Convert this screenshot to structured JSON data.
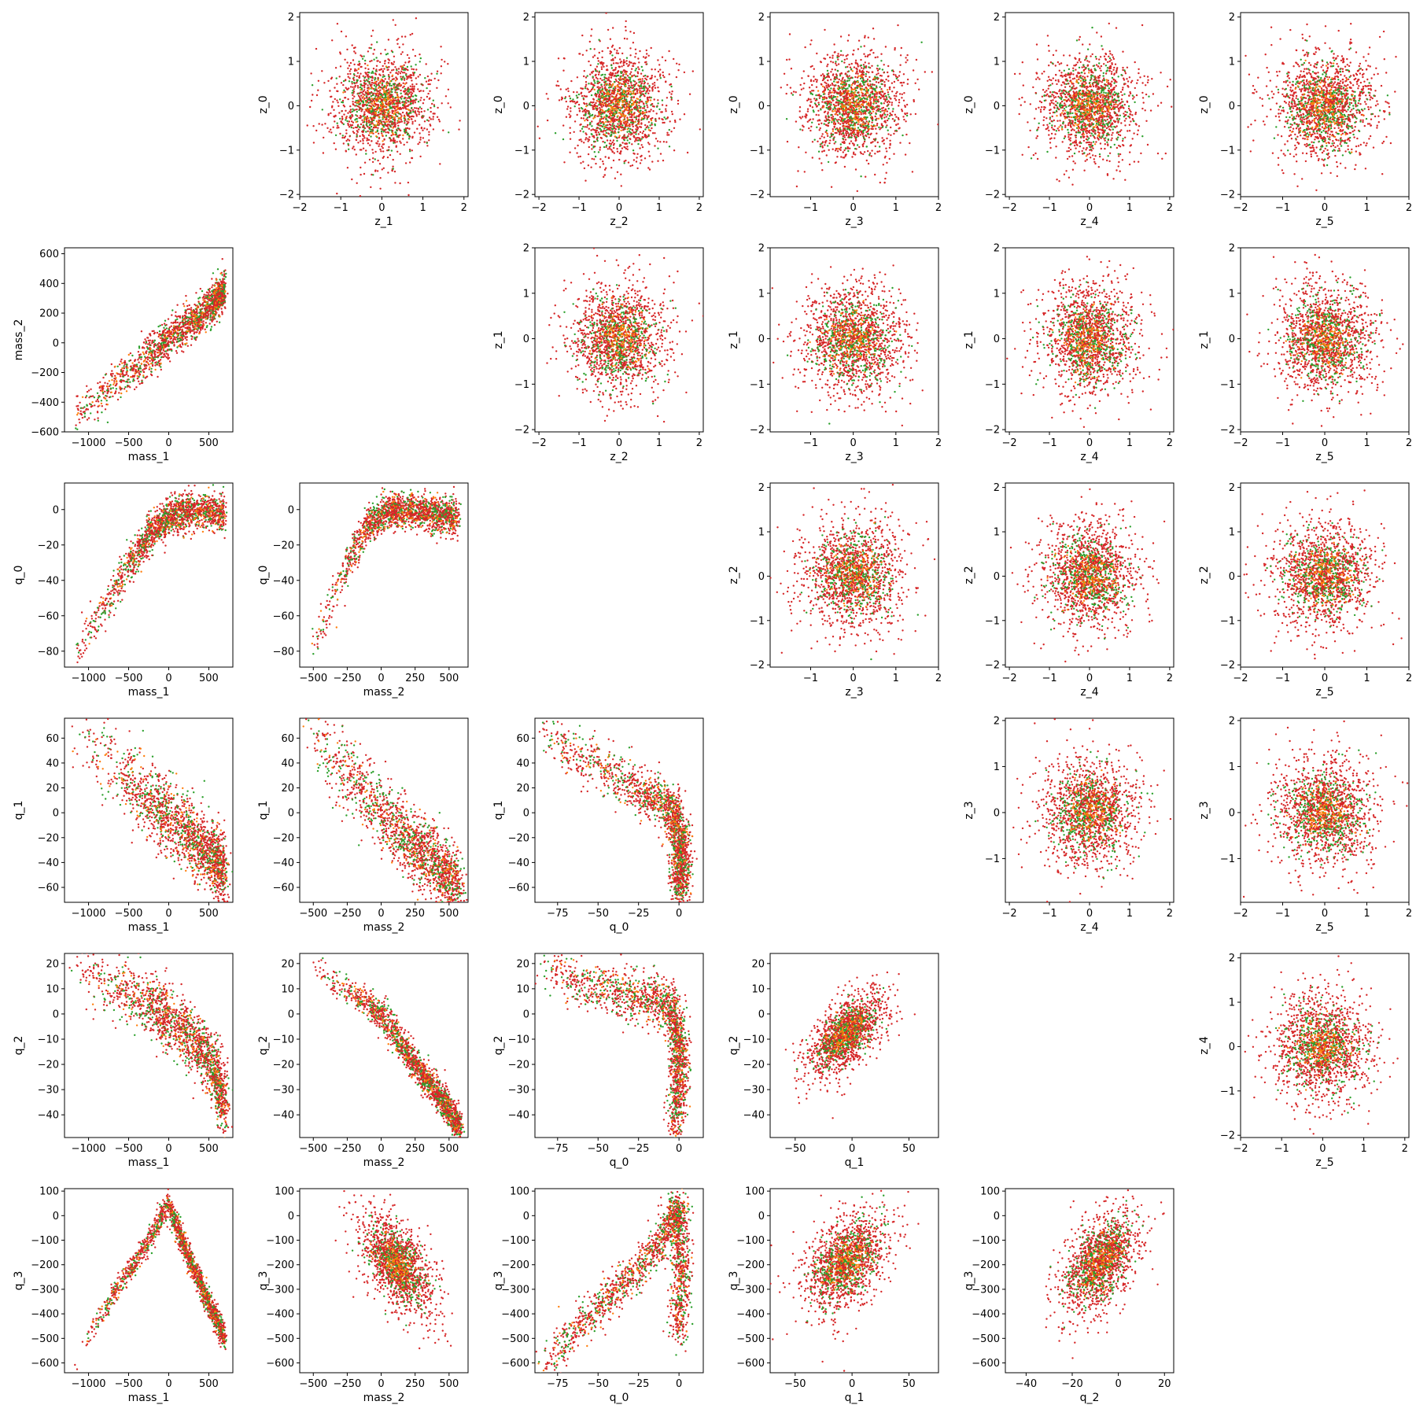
{
  "figure": {
    "kind": "corner pair plot",
    "colors": {
      "red": "#d62728",
      "green": "#2ca02c",
      "orange": "#ff7f0e"
    }
  },
  "chart_data": [
    {
      "type": "scatter",
      "row": 0,
      "col": 1,
      "xlabel": "z_1",
      "ylabel": "z_0",
      "xlim": [
        -2.0,
        2.1
      ],
      "ylim": [
        -2.05,
        2.1
      ],
      "xticks": [
        -2,
        -1,
        0,
        1,
        2
      ],
      "yticks": [
        -2,
        -1,
        0,
        1,
        2
      ],
      "shape": "blob",
      "sx": 0.65,
      "sy": 0.65
    },
    {
      "type": "scatter",
      "row": 0,
      "col": 2,
      "xlabel": "z_2",
      "ylabel": "z_0",
      "xlim": [
        -2.1,
        2.1
      ],
      "ylim": [
        -2.05,
        2.1
      ],
      "xticks": [
        -2,
        -1,
        0,
        1,
        2
      ],
      "yticks": [
        -2,
        -1,
        0,
        1,
        2
      ],
      "shape": "blob",
      "sx": 0.65,
      "sy": 0.65
    },
    {
      "type": "scatter",
      "row": 0,
      "col": 3,
      "xlabel": "z_3",
      "ylabel": "z_0",
      "xlim": [
        -1.95,
        2.0
      ],
      "ylim": [
        -2.05,
        2.1
      ],
      "xticks": [
        -1,
        0,
        1,
        2
      ],
      "yticks": [
        -2,
        -1,
        0,
        1,
        2
      ],
      "shape": "blob",
      "sx": 0.65,
      "sy": 0.65
    },
    {
      "type": "scatter",
      "row": 0,
      "col": 4,
      "xlabel": "z_4",
      "ylabel": "z_0",
      "xlim": [
        -2.1,
        2.1
      ],
      "ylim": [
        -2.05,
        2.1
      ],
      "xticks": [
        -2,
        -1,
        0,
        1,
        2
      ],
      "yticks": [
        -2,
        -1,
        0,
        1,
        2
      ],
      "shape": "blob",
      "sx": 0.65,
      "sy": 0.65
    },
    {
      "type": "scatter",
      "row": 0,
      "col": 5,
      "xlabel": "z_5",
      "ylabel": "z_0",
      "xlim": [
        -2.0,
        2.0
      ],
      "ylim": [
        -2.05,
        2.1
      ],
      "xticks": [
        -2,
        -1,
        0,
        1,
        2
      ],
      "yticks": [
        -2,
        -1,
        0,
        1,
        2
      ],
      "shape": "blob",
      "sx": 0.65,
      "sy": 0.65
    },
    {
      "type": "scatter",
      "row": 1,
      "col": 0,
      "xlabel": "mass_1",
      "ylabel": "mass_2",
      "xlim": [
        -1300,
        800
      ],
      "ylim": [
        -600,
        640
      ],
      "xticks": [
        -1000,
        -500,
        0,
        500
      ],
      "yticks": [
        -600,
        -400,
        -200,
        0,
        200,
        400,
        600
      ],
      "shape": "curve",
      "pts": [
        [
          -1200,
          -520
        ],
        [
          -1000,
          -420
        ],
        [
          -600,
          -250
        ],
        [
          -250,
          -90
        ],
        [
          0,
          20
        ],
        [
          300,
          140
        ],
        [
          550,
          260
        ],
        [
          700,
          360
        ]
      ],
      "spread": [
        15,
        65
      ],
      "skew": 0.55
    },
    {
      "type": "scatter",
      "row": 1,
      "col": 2,
      "xlabel": "z_2",
      "ylabel": "z_1",
      "xlim": [
        -2.1,
        2.1
      ],
      "ylim": [
        -2.05,
        2.0
      ],
      "xticks": [
        -2,
        -1,
        0,
        1,
        2
      ],
      "yticks": [
        -2,
        -1,
        0,
        1,
        2
      ],
      "shape": "blob",
      "sx": 0.65,
      "sy": 0.65
    },
    {
      "type": "scatter",
      "row": 1,
      "col": 3,
      "xlabel": "z_3",
      "ylabel": "z_1",
      "xlim": [
        -1.95,
        2.0
      ],
      "ylim": [
        -2.05,
        2.0
      ],
      "xticks": [
        -1,
        0,
        1,
        2
      ],
      "yticks": [
        -2,
        -1,
        0,
        1,
        2
      ],
      "shape": "blob",
      "sx": 0.65,
      "sy": 0.65
    },
    {
      "type": "scatter",
      "row": 1,
      "col": 4,
      "xlabel": "z_4",
      "ylabel": "z_1",
      "xlim": [
        -2.1,
        2.1
      ],
      "ylim": [
        -2.05,
        2.0
      ],
      "xticks": [
        -2,
        -1,
        0,
        1,
        2
      ],
      "yticks": [
        -2,
        -1,
        0,
        1,
        2
      ],
      "shape": "blob",
      "sx": 0.65,
      "sy": 0.65
    },
    {
      "type": "scatter",
      "row": 1,
      "col": 5,
      "xlabel": "z_5",
      "ylabel": "z_1",
      "xlim": [
        -2.0,
        2.0
      ],
      "ylim": [
        -2.05,
        2.0
      ],
      "xticks": [
        -2,
        -1,
        0,
        1,
        2
      ],
      "yticks": [
        -2,
        -1,
        0,
        1,
        2
      ],
      "shape": "blob",
      "sx": 0.65,
      "sy": 0.65
    },
    {
      "type": "scatter",
      "row": 2,
      "col": 0,
      "xlabel": "mass_1",
      "ylabel": "q_0",
      "xlim": [
        -1300,
        800
      ],
      "ylim": [
        -89,
        15
      ],
      "xticks": [
        -1000,
        -500,
        0,
        500
      ],
      "yticks": [
        -80,
        -60,
        -40,
        -20,
        0
      ],
      "shape": "curve",
      "pts": [
        [
          -1200,
          -83
        ],
        [
          -900,
          -62
        ],
        [
          -500,
          -32
        ],
        [
          -250,
          -15
        ],
        [
          0,
          -4
        ],
        [
          300,
          -1
        ],
        [
          700,
          -2
        ]
      ],
      "spread": [
        20,
        5
      ],
      "skew": 0.55
    },
    {
      "type": "scatter",
      "row": 2,
      "col": 1,
      "xlabel": "mass_2",
      "ylabel": "q_0",
      "xlim": [
        -600,
        640
      ],
      "ylim": [
        -89,
        15
      ],
      "xticks": [
        -500,
        -250,
        0,
        250,
        500
      ],
      "yticks": [
        -80,
        -60,
        -40,
        -20,
        0
      ],
      "shape": "curve",
      "pts": [
        [
          -550,
          -85
        ],
        [
          -420,
          -62
        ],
        [
          -250,
          -30
        ],
        [
          -120,
          -12
        ],
        [
          0,
          -3
        ],
        [
          150,
          0
        ],
        [
          350,
          -2
        ],
        [
          560,
          -5
        ]
      ],
      "spread": [
        20,
        5
      ],
      "skew": 0.45
    },
    {
      "type": "scatter",
      "row": 2,
      "col": 3,
      "xlabel": "z_3",
      "ylabel": "z_2",
      "xlim": [
        -1.95,
        2.0
      ],
      "ylim": [
        -2.05,
        2.1
      ],
      "xticks": [
        -1,
        0,
        1,
        2
      ],
      "yticks": [
        -2,
        -1,
        0,
        1,
        2
      ],
      "shape": "blob",
      "sx": 0.65,
      "sy": 0.65
    },
    {
      "type": "scatter",
      "row": 2,
      "col": 4,
      "xlabel": "z_4",
      "ylabel": "z_2",
      "xlim": [
        -2.1,
        2.1
      ],
      "ylim": [
        -2.05,
        2.1
      ],
      "xticks": [
        -2,
        -1,
        0,
        1,
        2
      ],
      "yticks": [
        -2,
        -1,
        0,
        1,
        2
      ],
      "shape": "blob",
      "sx": 0.65,
      "sy": 0.65
    },
    {
      "type": "scatter",
      "row": 2,
      "col": 5,
      "xlabel": "z_5",
      "ylabel": "z_2",
      "xlim": [
        -2.0,
        2.0
      ],
      "ylim": [
        -2.05,
        2.1
      ],
      "xticks": [
        -2,
        -1,
        0,
        1,
        2
      ],
      "yticks": [
        -2,
        -1,
        0,
        1,
        2
      ],
      "shape": "blob",
      "sx": 0.65,
      "sy": 0.65
    },
    {
      "type": "scatter",
      "row": 3,
      "col": 0,
      "xlabel": "mass_1",
      "ylabel": "q_1",
      "xlim": [
        -1300,
        800
      ],
      "ylim": [
        -72,
        76
      ],
      "xticks": [
        -1000,
        -500,
        0,
        500
      ],
      "yticks": [
        -60,
        -40,
        -20,
        0,
        20,
        40,
        60
      ],
      "shape": "curve",
      "pts": [
        [
          -1200,
          68
        ],
        [
          -900,
          50
        ],
        [
          -500,
          25
        ],
        [
          -200,
          8
        ],
        [
          0,
          -3
        ],
        [
          300,
          -20
        ],
        [
          550,
          -35
        ],
        [
          700,
          -48
        ]
      ],
      "spread": [
        35,
        14
      ],
      "skew": 0.55
    },
    {
      "type": "scatter",
      "row": 3,
      "col": 1,
      "xlabel": "mass_2",
      "ylabel": "q_1",
      "xlim": [
        -600,
        640
      ],
      "ylim": [
        -72,
        76
      ],
      "xticks": [
        -500,
        -250,
        0,
        250,
        500
      ],
      "yticks": [
        -60,
        -40,
        -20,
        0,
        20,
        40,
        60
      ],
      "shape": "curve",
      "pts": [
        [
          -550,
          70
        ],
        [
          -400,
          50
        ],
        [
          -200,
          25
        ],
        [
          0,
          0
        ],
        [
          200,
          -22
        ],
        [
          400,
          -42
        ],
        [
          580,
          -60
        ]
      ],
      "spread": [
        25,
        14
      ],
      "skew": 0.5
    },
    {
      "type": "scatter",
      "row": 3,
      "col": 2,
      "xlabel": "q_0",
      "ylabel": "q_1",
      "xlim": [
        -89,
        15
      ],
      "ylim": [
        -72,
        76
      ],
      "xticks": [
        -75,
        -50,
        -25,
        0
      ],
      "yticks": [
        -60,
        -40,
        -20,
        0,
        20,
        40,
        60
      ],
      "shape": "curve",
      "pts": [
        [
          -85,
          68
        ],
        [
          -65,
          48
        ],
        [
          -40,
          30
        ],
        [
          -20,
          14
        ],
        [
          -5,
          5
        ],
        [
          0,
          -15
        ],
        [
          2,
          -40
        ],
        [
          0,
          -62
        ]
      ],
      "spread": [
        3,
        10
      ],
      "skew": 0.7
    },
    {
      "type": "scatter",
      "row": 3,
      "col": 4,
      "xlabel": "z_4",
      "ylabel": "z_3",
      "xlim": [
        -2.1,
        2.1
      ],
      "ylim": [
        -1.95,
        2.05
      ],
      "xticks": [
        -2,
        -1,
        0,
        1,
        2
      ],
      "yticks": [
        -1,
        0,
        1,
        2
      ],
      "shape": "blob",
      "sx": 0.65,
      "sy": 0.65
    },
    {
      "type": "scatter",
      "row": 3,
      "col": 5,
      "xlabel": "z_5",
      "ylabel": "z_3",
      "xlim": [
        -2.0,
        2.0
      ],
      "ylim": [
        -1.95,
        2.05
      ],
      "xticks": [
        -2,
        -1,
        0,
        1,
        2
      ],
      "yticks": [
        -1,
        0,
        1,
        2
      ],
      "shape": "blob",
      "sx": 0.65,
      "sy": 0.65
    },
    {
      "type": "scatter",
      "row": 4,
      "col": 0,
      "xlabel": "mass_1",
      "ylabel": "q_2",
      "xlim": [
        -1300,
        800
      ],
      "ylim": [
        -49,
        24
      ],
      "xticks": [
        -1000,
        -500,
        0,
        500
      ],
      "yticks": [
        -40,
        -30,
        -20,
        -10,
        0,
        10,
        20
      ],
      "shape": "curve",
      "pts": [
        [
          -1200,
          21
        ],
        [
          -900,
          13
        ],
        [
          -500,
          8
        ],
        [
          -200,
          3
        ],
        [
          0,
          -2
        ],
        [
          300,
          -10
        ],
        [
          550,
          -20
        ],
        [
          700,
          -38
        ]
      ],
      "spread": [
        40,
        6
      ],
      "skew": 0.55
    },
    {
      "type": "scatter",
      "row": 4,
      "col": 1,
      "xlabel": "mass_2",
      "ylabel": "q_2",
      "xlim": [
        -600,
        640
      ],
      "ylim": [
        -49,
        24
      ],
      "xticks": [
        -500,
        -250,
        0,
        250,
        500
      ],
      "yticks": [
        -40,
        -30,
        -20,
        -10,
        0,
        10,
        20
      ],
      "shape": "curve",
      "pts": [
        [
          -550,
          21
        ],
        [
          -350,
          12
        ],
        [
          -150,
          6
        ],
        [
          0,
          0
        ],
        [
          150,
          -12
        ],
        [
          300,
          -24
        ],
        [
          450,
          -34
        ],
        [
          580,
          -45
        ]
      ],
      "spread": [
        20,
        3
      ],
      "skew": 0.5
    },
    {
      "type": "scatter",
      "row": 4,
      "col": 2,
      "xlabel": "q_0",
      "ylabel": "q_2",
      "xlim": [
        -89,
        15
      ],
      "ylim": [
        -49,
        24
      ],
      "xticks": [
        -75,
        -50,
        -25,
        0
      ],
      "yticks": [
        -40,
        -30,
        -20,
        -10,
        0,
        10,
        20
      ],
      "shape": "curve",
      "pts": [
        [
          -85,
          21
        ],
        [
          -65,
          12
        ],
        [
          -40,
          9
        ],
        [
          -20,
          6
        ],
        [
          -5,
          3
        ],
        [
          0,
          -10
        ],
        [
          0,
          -25
        ],
        [
          -2,
          -45
        ]
      ],
      "spread": [
        3,
        5
      ],
      "skew": 0.7
    },
    {
      "type": "scatter",
      "row": 4,
      "col": 3,
      "xlabel": "q_1",
      "ylabel": "q_2",
      "xlim": [
        -72,
        76
      ],
      "ylim": [
        -49,
        24
      ],
      "xticks": [
        -50,
        0,
        50
      ],
      "yticks": [
        -40,
        -30,
        -20,
        -10,
        0,
        10,
        20
      ],
      "shape": "blob",
      "cx": -5,
      "cy": -8,
      "sx": 18,
      "sy": 9,
      "rho": 0.6
    },
    {
      "type": "scatter",
      "row": 4,
      "col": 5,
      "xlabel": "z_5",
      "ylabel": "z_4",
      "xlim": [
        -2.0,
        2.1
      ],
      "ylim": [
        -2.05,
        2.1
      ],
      "xticks": [
        -2,
        -1,
        0,
        1,
        2
      ],
      "yticks": [
        -2,
        -1,
        0,
        1,
        2
      ],
      "shape": "blob",
      "sx": 0.65,
      "sy": 0.65
    },
    {
      "type": "scatter",
      "row": 5,
      "col": 0,
      "xlabel": "mass_1",
      "ylabel": "q_3",
      "xlim": [
        -1300,
        800
      ],
      "ylim": [
        -640,
        110
      ],
      "xticks": [
        -1000,
        -500,
        0,
        500
      ],
      "yticks": [
        -600,
        -500,
        -400,
        -300,
        -200,
        -100,
        0,
        100
      ],
      "shape": "vee",
      "pts": [
        [
          -1200,
          -615
        ],
        [
          -900,
          -430
        ],
        [
          -600,
          -280
        ],
        [
          -300,
          -130
        ],
        [
          0,
          50
        ],
        [
          200,
          -130
        ],
        [
          450,
          -320
        ],
        [
          700,
          -500
        ]
      ],
      "spread": [
        15,
        25
      ],
      "skew": 0.5
    },
    {
      "type": "scatter",
      "row": 5,
      "col": 1,
      "xlabel": "mass_2",
      "ylabel": "q_3",
      "xlim": [
        -600,
        640
      ],
      "ylim": [
        -640,
        110
      ],
      "xticks": [
        -500,
        -250,
        0,
        250,
        500
      ],
      "yticks": [
        -600,
        -500,
        -400,
        -300,
        -200,
        -100,
        0,
        100
      ],
      "shape": "blob",
      "cx": 120,
      "cy": -200,
      "sx": 150,
      "sy": 110,
      "rho": -0.55
    },
    {
      "type": "scatter",
      "row": 5,
      "col": 2,
      "xlabel": "q_0",
      "ylabel": "q_3",
      "xlim": [
        -89,
        15
      ],
      "ylim": [
        -640,
        110
      ],
      "xticks": [
        -75,
        -50,
        -25,
        0
      ],
      "yticks": [
        -600,
        -500,
        -400,
        -300,
        -200,
        -100,
        0,
        100
      ],
      "shape": "curve",
      "pts": [
        [
          -85,
          -610
        ],
        [
          -65,
          -470
        ],
        [
          -45,
          -350
        ],
        [
          -25,
          -220
        ],
        [
          -8,
          -80
        ],
        [
          0,
          50
        ],
        [
          2,
          -200
        ],
        [
          0,
          -480
        ]
      ],
      "spread": [
        3,
        40
      ],
      "skew": 0.75
    },
    {
      "type": "scatter",
      "row": 5,
      "col": 3,
      "xlabel": "q_1",
      "ylabel": "q_3",
      "xlim": [
        -72,
        76
      ],
      "ylim": [
        -640,
        110
      ],
      "xticks": [
        -50,
        0,
        50
      ],
      "yticks": [
        -600,
        -500,
        -400,
        -300,
        -200,
        -100,
        0,
        100
      ],
      "shape": "blob",
      "cx": -5,
      "cy": -190,
      "sx": 20,
      "sy": 110,
      "rho": 0.45
    },
    {
      "type": "scatter",
      "row": 5,
      "col": 4,
      "xlabel": "q_2",
      "ylabel": "q_3",
      "xlim": [
        -49,
        24
      ],
      "ylim": [
        -640,
        110
      ],
      "xticks": [
        -40,
        -20,
        0,
        20
      ],
      "yticks": [
        -600,
        -500,
        -400,
        -300,
        -200,
        -100,
        0,
        100
      ],
      "shape": "blob",
      "cx": -8,
      "cy": -190,
      "sx": 9,
      "sy": 110,
      "rho": 0.5
    }
  ]
}
